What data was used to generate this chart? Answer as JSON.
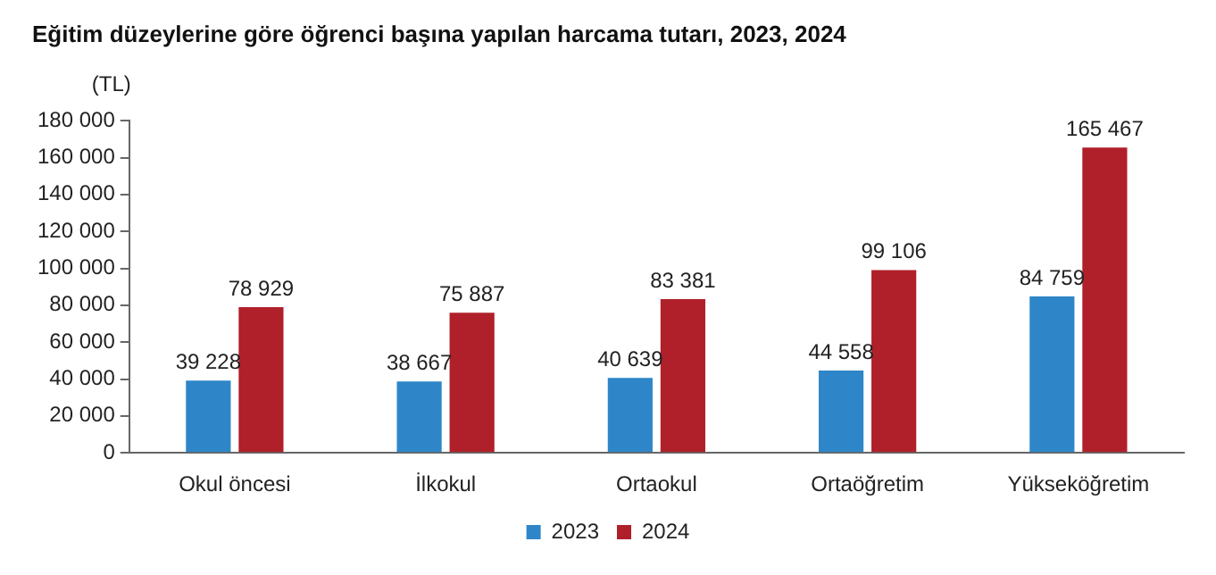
{
  "chart_data": {
    "type": "bar",
    "title": "Eğitim düzeylerine göre öğrenci başına yapılan harcama tutarı, 2023, 2024",
    "ylabel": "(TL)",
    "categories": [
      "Okul öncesi",
      "İlkokul",
      "Ortaokul",
      "Ortaöğretim",
      "Yükseköğretim"
    ],
    "series": [
      {
        "name": "2023",
        "color": "#2e86c8",
        "values": [
          39228,
          38667,
          40639,
          44558,
          84759
        ]
      },
      {
        "name": "2024",
        "color": "#b0202a",
        "values": [
          78929,
          75887,
          83381,
          99106,
          165467
        ]
      }
    ],
    "ylim": [
      0,
      180000
    ],
    "yticks": [
      0,
      {
        "value": 20000,
        "label": "20 000"
      },
      {
        "value": 40000,
        "label": "40 000"
      },
      {
        "value": 60000,
        "label": "60 000"
      },
      {
        "value": 80000,
        "label": "80 000"
      },
      {
        "value": 100000,
        "label": "100 000"
      },
      {
        "value": 120000,
        "label": "120 000"
      },
      {
        "value": 140000,
        "label": "140 000"
      },
      {
        "value": 160000,
        "label": "160 000"
      },
      {
        "value": 180000,
        "label": "180 000"
      }
    ],
    "data_labels": true,
    "grid": false,
    "legend": "bottom"
  }
}
